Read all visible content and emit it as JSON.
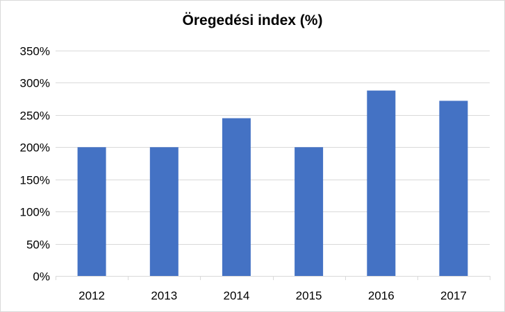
{
  "chart_data": {
    "type": "bar",
    "title": "Öregedési index (%)",
    "categories": [
      "2012",
      "2013",
      "2014",
      "2015",
      "2016",
      "2017"
    ],
    "values": [
      200,
      200,
      245,
      200,
      288,
      272
    ],
    "ylim": [
      0,
      350
    ],
    "yticks": [
      0,
      50,
      100,
      150,
      200,
      250,
      300,
      350
    ],
    "ytick_labels": [
      "0%",
      "50%",
      "100%",
      "150%",
      "200%",
      "250%",
      "300%",
      "350%"
    ],
    "grid": true,
    "legend": "none",
    "bar_color": "#4472c4",
    "grid_color": "#d9d9d9"
  }
}
